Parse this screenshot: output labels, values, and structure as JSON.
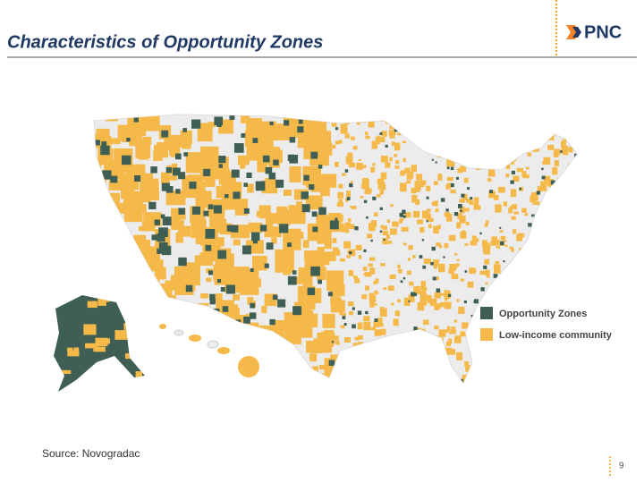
{
  "header": {
    "title": "Characteristics of Opportunity Zones",
    "logo": "PNC"
  },
  "legend": {
    "items": [
      "Opportunity Zones",
      "Low-income community"
    ]
  },
  "footer": {
    "source": "Source: Novogradac",
    "page": "9"
  }
}
